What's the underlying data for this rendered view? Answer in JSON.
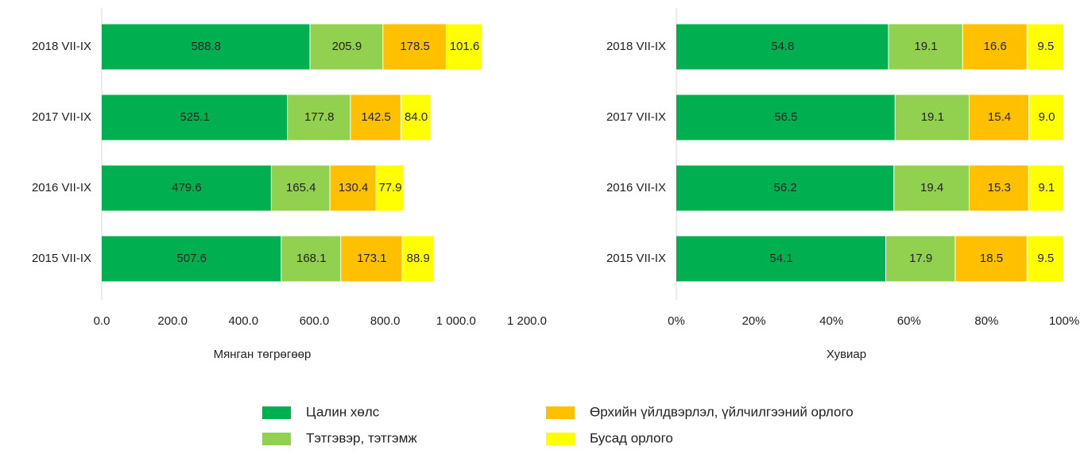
{
  "chart_data": [
    {
      "type": "stacked-bar",
      "orientation": "horizontal",
      "x_label": "Мянган төгрөгөөр",
      "categories": [
        "2018 VII-IX",
        "2017 VII-IX",
        "2016 VII-IX",
        "2015 VII-IX"
      ],
      "series": [
        {
          "name": "Цалин хөлс",
          "color": "#00b050",
          "values": [
            588.8,
            525.1,
            479.6,
            507.6
          ]
        },
        {
          "name": "Тэтгэвэр, тэтгэмж",
          "color": "#92d050",
          "values": [
            205.9,
            177.8,
            165.4,
            168.1
          ]
        },
        {
          "name": "Өрхийн үйлдвэрлэл, үйлчилгээний орлого",
          "color": "#ffc000",
          "values": [
            178.5,
            142.5,
            130.4,
            173.1
          ]
        },
        {
          "name": "Бусад орлого",
          "color": "#ffff00",
          "values": [
            101.6,
            84.0,
            77.9,
            88.9
          ],
          "value_labels": [
            "101.6",
            "84.0",
            "77.9",
            "88.9"
          ]
        }
      ],
      "xlim": [
        0,
        1200
      ],
      "xticks": [
        {
          "value": 0,
          "label": "0.0"
        },
        {
          "value": 200,
          "label": "200.0"
        },
        {
          "value": 400,
          "label": "400.0"
        },
        {
          "value": 600,
          "label": "600.0"
        },
        {
          "value": 800,
          "label": "800.0"
        },
        {
          "value": 1000,
          "label": "1 000.0"
        },
        {
          "value": 1200,
          "label": "1 200.0"
        }
      ]
    },
    {
      "type": "stacked-bar",
      "orientation": "horizontal",
      "x_label": "Хувиар",
      "categories": [
        "2018 VII-IX",
        "2017 VII-IX",
        "2016 VII-IX",
        "2015 VII-IX"
      ],
      "series": [
        {
          "color": "#00b050",
          "values": [
            54.8,
            56.5,
            56.2,
            54.1
          ]
        },
        {
          "color": "#92d050",
          "values": [
            19.1,
            19.1,
            19.4,
            17.9
          ]
        },
        {
          "color": "#ffc000",
          "values": [
            16.6,
            15.4,
            15.3,
            18.5
          ]
        },
        {
          "color": "#ffff00",
          "values": [
            9.5,
            9.0,
            9.1,
            9.5
          ],
          "value_labels": [
            "9.5",
            "9.0",
            "9.1",
            "9.5"
          ]
        }
      ],
      "xlim": [
        0,
        100
      ],
      "xticks": [
        {
          "value": 0,
          "label": "0%"
        },
        {
          "value": 20,
          "label": "20%"
        },
        {
          "value": 40,
          "label": "40%"
        },
        {
          "value": 60,
          "label": "60%"
        },
        {
          "value": 80,
          "label": "80%"
        },
        {
          "value": 100,
          "label": "100%"
        }
      ]
    }
  ]
}
